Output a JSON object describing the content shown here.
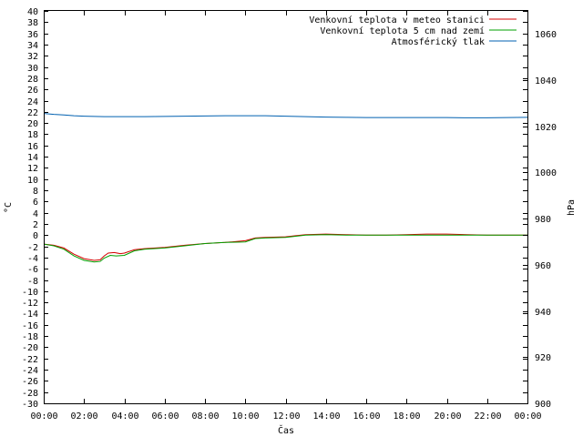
{
  "chart_data": {
    "type": "line",
    "xlabel": "Čas",
    "ylabel_left": "°C",
    "ylabel_right": "hPa",
    "x_ticks": [
      "00:00",
      "02:00",
      "04:00",
      "06:00",
      "08:00",
      "10:00",
      "12:00",
      "14:00",
      "16:00",
      "18:00",
      "20:00",
      "22:00",
      "00:00"
    ],
    "xlim_hours": [
      0,
      24
    ],
    "ylim_left": [
      -30,
      40
    ],
    "ylim_right": [
      900,
      1070
    ],
    "y_ticks_left": [
      -30,
      -28,
      -26,
      -24,
      -22,
      -20,
      -18,
      -16,
      -14,
      -12,
      -10,
      -8,
      -6,
      -4,
      -2,
      0,
      2,
      4,
      6,
      8,
      10,
      12,
      14,
      16,
      18,
      20,
      22,
      24,
      26,
      28,
      30,
      32,
      34,
      36,
      38,
      40
    ],
    "y_ticks_right": [
      900,
      920,
      940,
      960,
      980,
      1000,
      1020,
      1040,
      1060
    ],
    "grid": false,
    "legend_position": "top-right",
    "series": [
      {
        "name": "Venkovní teplota v meteo stanici",
        "color": "#d40000",
        "axis": "left",
        "points": [
          [
            0,
            -1.6
          ],
          [
            0.5,
            -1.8
          ],
          [
            1,
            -2.3
          ],
          [
            1.5,
            -3.4
          ],
          [
            2,
            -4.2
          ],
          [
            2.5,
            -4.5
          ],
          [
            2.8,
            -4.4
          ],
          [
            3,
            -3.7
          ],
          [
            3.2,
            -3.2
          ],
          [
            3.5,
            -3.1
          ],
          [
            3.8,
            -3.3
          ],
          [
            4,
            -3.2
          ],
          [
            4.5,
            -2.6
          ],
          [
            5,
            -2.4
          ],
          [
            6,
            -2.2
          ],
          [
            7,
            -1.8
          ],
          [
            8,
            -1.5
          ],
          [
            9,
            -1.3
          ],
          [
            10,
            -1.0
          ],
          [
            10.5,
            -0.5
          ],
          [
            11,
            -0.4
          ],
          [
            12,
            -0.3
          ],
          [
            12.5,
            -0.1
          ],
          [
            13,
            0.1
          ],
          [
            14,
            0.2
          ],
          [
            15,
            0.1
          ],
          [
            16,
            0
          ],
          [
            17,
            0
          ],
          [
            18,
            0.1
          ],
          [
            19,
            0.2
          ],
          [
            20,
            0.2
          ],
          [
            21,
            0.1
          ],
          [
            22,
            0
          ],
          [
            23,
            0
          ],
          [
            24,
            0
          ]
        ]
      },
      {
        "name": "Venkovní teplota 5 cm nad zemí",
        "color": "#00a000",
        "axis": "left",
        "points": [
          [
            0,
            -1.6
          ],
          [
            0.5,
            -1.9
          ],
          [
            1,
            -2.5
          ],
          [
            1.5,
            -3.7
          ],
          [
            2,
            -4.5
          ],
          [
            2.5,
            -4.8
          ],
          [
            2.8,
            -4.7
          ],
          [
            3,
            -4.1
          ],
          [
            3.3,
            -3.6
          ],
          [
            3.6,
            -3.7
          ],
          [
            4,
            -3.6
          ],
          [
            4.5,
            -2.8
          ],
          [
            5,
            -2.5
          ],
          [
            6,
            -2.3
          ],
          [
            7,
            -1.9
          ],
          [
            8,
            -1.5
          ],
          [
            9,
            -1.3
          ],
          [
            10,
            -1.2
          ],
          [
            10.5,
            -0.6
          ],
          [
            11,
            -0.5
          ],
          [
            12,
            -0.4
          ],
          [
            12.5,
            -0.2
          ],
          [
            13,
            0
          ],
          [
            14,
            0.1
          ],
          [
            15,
            0
          ],
          [
            16,
            0
          ],
          [
            17,
            0
          ],
          [
            18,
            0
          ],
          [
            19,
            0
          ],
          [
            20,
            0
          ],
          [
            21,
            0
          ],
          [
            22,
            0
          ],
          [
            23,
            0
          ],
          [
            24,
            0
          ]
        ]
      },
      {
        "name": "Atmosférický tlak",
        "color": "#0060b0",
        "axis": "right",
        "points": [
          [
            0,
            1025.6
          ],
          [
            0.5,
            1025.2
          ],
          [
            1,
            1024.9
          ],
          [
            1.5,
            1024.6
          ],
          [
            2,
            1024.4
          ],
          [
            2.5,
            1024.3
          ],
          [
            3,
            1024.2
          ],
          [
            4,
            1024.2
          ],
          [
            5,
            1024.2
          ],
          [
            6,
            1024.3
          ],
          [
            7,
            1024.4
          ],
          [
            8,
            1024.5
          ],
          [
            9,
            1024.6
          ],
          [
            10,
            1024.6
          ],
          [
            11,
            1024.6
          ],
          [
            12,
            1024.4
          ],
          [
            13,
            1024.2
          ],
          [
            14,
            1024.0
          ],
          [
            15,
            1023.9
          ],
          [
            16,
            1023.8
          ],
          [
            17,
            1023.8
          ],
          [
            18,
            1023.8
          ],
          [
            19,
            1023.8
          ],
          [
            20,
            1023.8
          ],
          [
            21,
            1023.7
          ],
          [
            22,
            1023.7
          ],
          [
            23,
            1023.8
          ],
          [
            24,
            1023.9
          ]
        ]
      }
    ]
  }
}
